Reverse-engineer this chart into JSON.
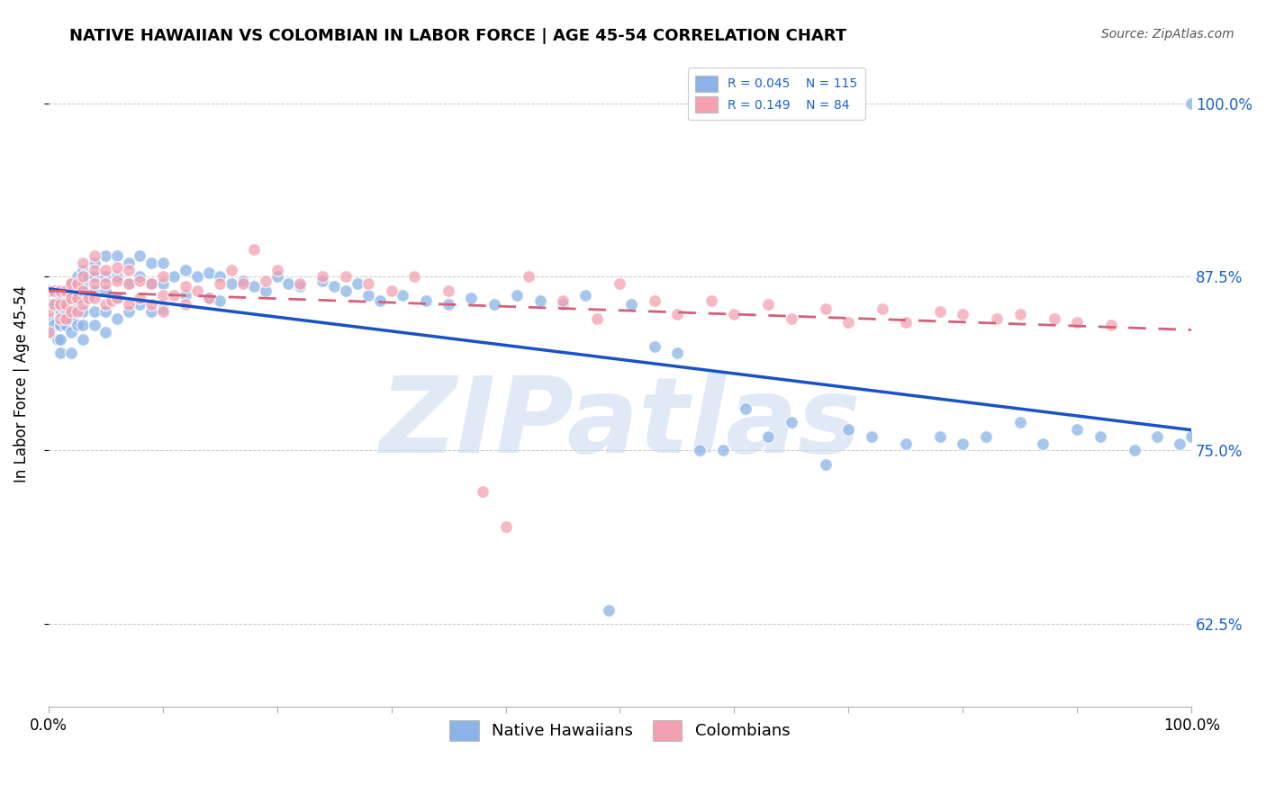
{
  "title": "NATIVE HAWAIIAN VS COLOMBIAN IN LABOR FORCE | AGE 45-54 CORRELATION CHART",
  "source": "Source: ZipAtlas.com",
  "ylabel": "In Labor Force | Age 45-54",
  "ytick_labels": [
    "62.5%",
    "75.0%",
    "87.5%",
    "100.0%"
  ],
  "ytick_values": [
    0.625,
    0.75,
    0.875,
    1.0
  ],
  "xtick_values": [
    0.0,
    0.1,
    0.2,
    0.3,
    0.4,
    0.5,
    0.6,
    0.7,
    0.8,
    0.9,
    1.0
  ],
  "xlim": [
    0.0,
    1.0
  ],
  "ylim": [
    0.565,
    1.03
  ],
  "blue_color": "#8AB4E8",
  "pink_color": "#F4A0B0",
  "blue_line_color": "#1A52C4",
  "pink_line_color": "#D4607A",
  "watermark": "ZIPatlas",
  "watermark_color": "#C8D8F0",
  "blue_r": 0.045,
  "pink_r": 0.149,
  "blue_n": 115,
  "pink_n": 84,
  "legend_text_color": "#1A60D0",
  "right_tick_color": "#1A60D0",
  "title_fontsize": 13,
  "source_fontsize": 10,
  "axis_fontsize": 12,
  "dot_size": 100,
  "dot_alpha": 0.75,
  "blue_scatter_x": [
    0.0,
    0.0,
    0.0,
    0.0,
    0.005,
    0.005,
    0.008,
    0.01,
    0.01,
    0.01,
    0.01,
    0.01,
    0.01,
    0.015,
    0.015,
    0.015,
    0.02,
    0.02,
    0.02,
    0.02,
    0.02,
    0.02,
    0.025,
    0.025,
    0.025,
    0.025,
    0.03,
    0.03,
    0.03,
    0.03,
    0.03,
    0.03,
    0.035,
    0.035,
    0.04,
    0.04,
    0.04,
    0.04,
    0.04,
    0.05,
    0.05,
    0.05,
    0.05,
    0.05,
    0.06,
    0.06,
    0.06,
    0.06,
    0.07,
    0.07,
    0.07,
    0.08,
    0.08,
    0.08,
    0.09,
    0.09,
    0.09,
    0.1,
    0.1,
    0.1,
    0.11,
    0.12,
    0.12,
    0.13,
    0.14,
    0.14,
    0.15,
    0.15,
    0.16,
    0.17,
    0.18,
    0.19,
    0.2,
    0.21,
    0.22,
    0.24,
    0.25,
    0.26,
    0.27,
    0.28,
    0.29,
    0.31,
    0.33,
    0.35,
    0.37,
    0.39,
    0.41,
    0.43,
    0.45,
    0.47,
    0.49,
    0.51,
    0.53,
    0.55,
    0.57,
    0.59,
    0.61,
    0.63,
    0.65,
    0.68,
    0.7,
    0.72,
    0.75,
    0.78,
    0.8,
    0.82,
    0.85,
    0.87,
    0.9,
    0.92,
    0.95,
    0.97,
    0.99,
    1.0,
    1.0
  ],
  "blue_scatter_y": [
    0.835,
    0.845,
    0.855,
    0.865,
    0.84,
    0.855,
    0.83,
    0.84,
    0.85,
    0.855,
    0.86,
    0.83,
    0.82,
    0.845,
    0.85,
    0.84,
    0.87,
    0.86,
    0.85,
    0.845,
    0.835,
    0.82,
    0.875,
    0.865,
    0.855,
    0.84,
    0.88,
    0.87,
    0.86,
    0.85,
    0.84,
    0.83,
    0.875,
    0.86,
    0.885,
    0.875,
    0.865,
    0.85,
    0.84,
    0.89,
    0.875,
    0.865,
    0.85,
    0.835,
    0.89,
    0.875,
    0.86,
    0.845,
    0.885,
    0.87,
    0.85,
    0.89,
    0.875,
    0.855,
    0.885,
    0.87,
    0.85,
    0.885,
    0.87,
    0.852,
    0.875,
    0.88,
    0.862,
    0.875,
    0.878,
    0.86,
    0.875,
    0.858,
    0.87,
    0.872,
    0.868,
    0.865,
    0.875,
    0.87,
    0.868,
    0.872,
    0.868,
    0.865,
    0.87,
    0.862,
    0.858,
    0.862,
    0.858,
    0.855,
    0.86,
    0.855,
    0.862,
    0.858,
    0.855,
    0.862,
    0.635,
    0.855,
    0.825,
    0.82,
    0.75,
    0.75,
    0.78,
    0.76,
    0.77,
    0.74,
    0.765,
    0.76,
    0.755,
    0.76,
    0.755,
    0.76,
    0.77,
    0.755,
    0.765,
    0.76,
    0.75,
    0.76,
    0.755,
    0.76,
    1.0
  ],
  "pink_scatter_x": [
    0.0,
    0.0,
    0.0,
    0.005,
    0.005,
    0.01,
    0.01,
    0.01,
    0.015,
    0.015,
    0.015,
    0.02,
    0.02,
    0.02,
    0.025,
    0.025,
    0.025,
    0.03,
    0.03,
    0.03,
    0.03,
    0.035,
    0.04,
    0.04,
    0.04,
    0.04,
    0.05,
    0.05,
    0.05,
    0.055,
    0.06,
    0.06,
    0.06,
    0.07,
    0.07,
    0.07,
    0.08,
    0.08,
    0.09,
    0.09,
    0.1,
    0.1,
    0.1,
    0.11,
    0.12,
    0.12,
    0.13,
    0.14,
    0.15,
    0.16,
    0.17,
    0.18,
    0.19,
    0.2,
    0.22,
    0.24,
    0.26,
    0.28,
    0.3,
    0.32,
    0.35,
    0.38,
    0.4,
    0.42,
    0.45,
    0.48,
    0.5,
    0.53,
    0.55,
    0.58,
    0.6,
    0.63,
    0.65,
    0.68,
    0.7,
    0.73,
    0.75,
    0.78,
    0.8,
    0.83,
    0.85,
    0.88,
    0.9,
    0.93
  ],
  "pink_scatter_y": [
    0.835,
    0.85,
    0.865,
    0.855,
    0.865,
    0.845,
    0.855,
    0.865,
    0.845,
    0.855,
    0.865,
    0.85,
    0.86,
    0.87,
    0.85,
    0.86,
    0.87,
    0.855,
    0.865,
    0.875,
    0.885,
    0.86,
    0.86,
    0.87,
    0.88,
    0.89,
    0.855,
    0.87,
    0.88,
    0.858,
    0.86,
    0.872,
    0.882,
    0.87,
    0.88,
    0.855,
    0.872,
    0.86,
    0.87,
    0.855,
    0.875,
    0.862,
    0.85,
    0.862,
    0.868,
    0.855,
    0.865,
    0.86,
    0.87,
    0.88,
    0.87,
    0.895,
    0.872,
    0.88,
    0.87,
    0.875,
    0.875,
    0.87,
    0.865,
    0.875,
    0.865,
    0.72,
    0.695,
    0.875,
    0.858,
    0.845,
    0.87,
    0.858,
    0.848,
    0.858,
    0.848,
    0.855,
    0.845,
    0.852,
    0.842,
    0.852,
    0.842,
    0.85,
    0.848,
    0.845,
    0.848,
    0.845,
    0.842,
    0.84
  ]
}
